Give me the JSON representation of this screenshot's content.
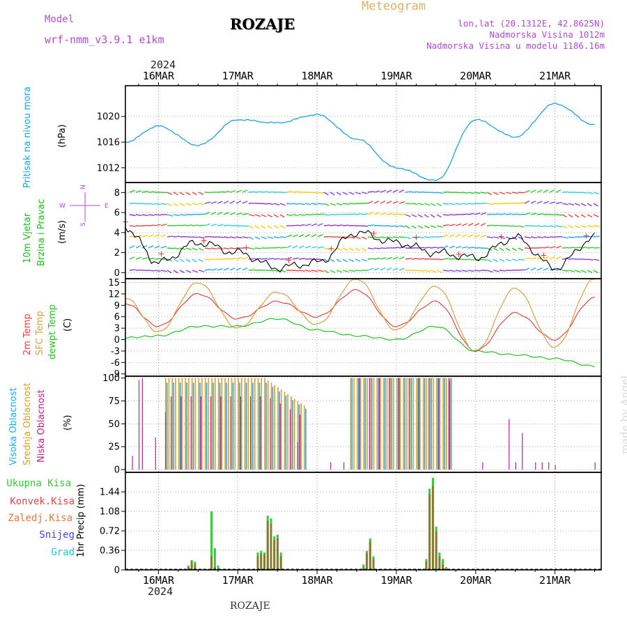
{
  "header": {
    "model_label": "Model",
    "model_name": "wrf-nmm_v3.9.1  e1km",
    "station": "ROZAJE",
    "meteogram_label": "Meteogram",
    "coords": "lon,lat (20.1312E, 42.8625N)",
    "elevation": "Nadmorska Visina 1012m",
    "model_elevation": "Nadmorska Visina u modelu 1186.16m",
    "credit": "made by Angel",
    "footer_station": "ROZAJE",
    "year": "2024"
  },
  "colors": {
    "pressure": "#1aa3e8",
    "temp2m": "#e84545",
    "sfctemp": "#d9a040",
    "dewpt": "#22c322",
    "high_cloud": "#22aaee",
    "mid_cloud": "#d9a030",
    "low_cloud": "#c0208a",
    "total_precip": "#33cc33",
    "conv_precip": "#ee4444",
    "frz_precip": "#ee7733",
    "snow": "#4444dd",
    "graupel": "#22c8c8",
    "wind_label": "#22bb22",
    "axis_purple": "#b44ad8",
    "meteogram": "#e0b060"
  },
  "x_axis": {
    "day_labels": [
      "16MAR",
      "17MAR",
      "18MAR",
      "19MAR",
      "20MAR",
      "21MAR"
    ],
    "start": "2024-03-15 14:00",
    "end": "2024-03-21 14:00"
  },
  "chart_data": [
    {
      "type": "line",
      "panel": "pressure",
      "ylabel_name": "Pritisak na nivou mora",
      "ylabel_unit": "(hPa)",
      "yticks": [
        "1012",
        "1016",
        "1020"
      ],
      "ylim": [
        1009.7,
        1024.8
      ],
      "x": [
        "15MAR 14h",
        "16MAR 00h",
        "16MAR 12h",
        "17MAR 00h",
        "17MAR 12h",
        "18MAR 00h",
        "18MAR 12h",
        "19MAR 00h",
        "19MAR 12h",
        "20MAR 00h",
        "20MAR 12h",
        "21MAR 00h",
        "21MAR 12h"
      ],
      "series": [
        {
          "name": "Pritisak na nivou mora",
          "values": [
            1016.0,
            1018.5,
            1015.5,
            1019.5,
            1019.0,
            1020.3,
            1016.5,
            1012.0,
            1010.0,
            1019.5,
            1016.8,
            1022.0,
            1018.7
          ]
        }
      ]
    },
    {
      "type": "line",
      "panel": "wind",
      "ylabel_name_1": "10m Vjetar",
      "ylabel_name_2": "Brzina i Pravac",
      "ylabel_unit": "(m/s)",
      "compass_labels": [
        "N",
        "W",
        "E",
        "S"
      ],
      "yticks": [
        "0",
        "2",
        "4",
        "6",
        "8"
      ],
      "ylim": [
        -0.6,
        9.0
      ],
      "x": [
        "15MAR 14h",
        "16MAR 00h",
        "16MAR 12h",
        "17MAR 00h",
        "17MAR 12h",
        "18MAR 00h",
        "18MAR 12h",
        "19MAR 00h",
        "19MAR 12h",
        "20MAR 00h",
        "20MAR 12h",
        "21MAR 00h",
        "21MAR 12h"
      ],
      "series": [
        {
          "name": "Brzina",
          "values": [
            4.5,
            1.0,
            3.0,
            2.0,
            0.5,
            1.0,
            4.0,
            3.0,
            2.0,
            1.5,
            3.5,
            0.5,
            3.5
          ]
        }
      ]
    },
    {
      "type": "line",
      "panel": "temperature",
      "ylabel_names": [
        "2m Temp",
        "SFC Temp",
        "dewpt Temp"
      ],
      "ylabel_unit": "(C)",
      "yticks": [
        "-9",
        "-6",
        "-3",
        "0",
        "3",
        "6",
        "9",
        "12",
        "15"
      ],
      "ylim": [
        -9.6,
        16.0
      ],
      "x": [
        "15MAR 14h",
        "16MAR 00h",
        "16MAR 12h",
        "17MAR 00h",
        "17MAR 12h",
        "18MAR 00h",
        "18MAR 12h",
        "19MAR 00h",
        "19MAR 12h",
        "20MAR 00h",
        "20MAR 12h",
        "21MAR 00h",
        "21MAR 12h"
      ],
      "series": [
        {
          "name": "2m Temp",
          "values": [
            9.5,
            3.5,
            12.0,
            5.5,
            10.0,
            6.0,
            13.0,
            3.5,
            10.0,
            -3.0,
            7.0,
            0.0,
            11.0
          ]
        },
        {
          "name": "SFC Temp",
          "values": [
            11.0,
            2.0,
            15.0,
            3.0,
            12.5,
            4.0,
            16.0,
            2.5,
            14.0,
            -3.0,
            13.5,
            -2.0,
            16.0
          ]
        },
        {
          "name": "dewpt Temp",
          "values": [
            0.5,
            1.0,
            3.5,
            3.5,
            5.5,
            2.5,
            1.0,
            0.0,
            3.5,
            -3.0,
            -4.0,
            -5.0,
            -7.0
          ]
        }
      ]
    },
    {
      "type": "bar",
      "panel": "clouds",
      "ylabel_names": [
        "Visoka Oblacnost",
        "Srednja Oblacnost",
        "Niska Oblacnost"
      ],
      "ylabel_unit": "(%)",
      "yticks": [
        "0",
        "25",
        "50",
        "75",
        "100"
      ],
      "ylim": [
        -3,
        102
      ],
      "periods": [
        {
          "from": "16MAR 02h",
          "to": "17MAR 20h",
          "mid": 100,
          "high": 95,
          "low": 80
        },
        {
          "from": "18MAR 10h",
          "to": "19MAR 16h",
          "mid": 100,
          "high": 100,
          "low": 100
        }
      ]
    },
    {
      "type": "bar",
      "panel": "precipitation",
      "ylabel_name": "1hr Precip (mm)",
      "legend": [
        "Ukupna Kisa",
        "Konvek.Kisa",
        "Zaledj.Kisa",
        "Snijeg",
        "Grad"
      ],
      "yticks": [
        "0",
        "0.36",
        "0.72",
        "1.08",
        "1.44"
      ],
      "ylim": [
        0,
        1.8
      ],
      "x": [
        "16MAR 09h",
        "16MAR 10h",
        "16MAR 11h",
        "16MAR 16h",
        "16MAR 17h",
        "16MAR 18h",
        "17MAR 06h",
        "17MAR 07h",
        "17MAR 08h",
        "17MAR 09h",
        "17MAR 10h",
        "17MAR 11h",
        "17MAR 12h",
        "17MAR 13h",
        "18MAR 14h",
        "18MAR 15h",
        "18MAR 16h",
        "18MAR 17h",
        "19MAR 09h",
        "19MAR 10h",
        "19MAR 11h",
        "19MAR 12h",
        "19MAR 13h",
        "19MAR 14h",
        "19MAR 15h"
      ],
      "series": [
        {
          "name": "Ukupna Kisa",
          "values": [
            0.08,
            0.18,
            0.15,
            1.08,
            0.4,
            0.08,
            0.32,
            0.35,
            0.32,
            1.0,
            0.95,
            0.62,
            0.65,
            0.32,
            0.1,
            0.35,
            0.58,
            0.25,
            0.2,
            1.5,
            1.7,
            0.8,
            0.32,
            0.2,
            0.05
          ]
        },
        {
          "name": "Konvek.Kisa",
          "values": [
            0.05,
            0.15,
            0.1,
            0.25,
            0.05,
            0.02,
            0.25,
            0.3,
            0.28,
            0.9,
            0.85,
            0.55,
            0.58,
            0.25,
            0.05,
            0.3,
            0.52,
            0.2,
            0.15,
            1.4,
            1.55,
            0.7,
            0.25,
            0.1,
            0.02
          ]
        }
      ]
    }
  ]
}
